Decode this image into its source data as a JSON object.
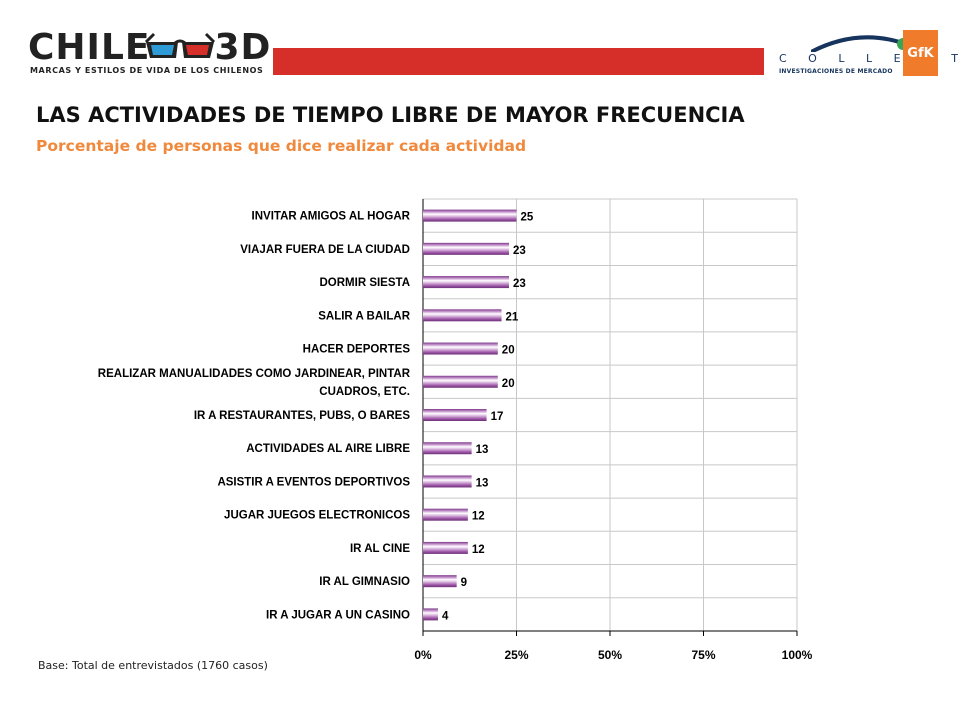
{
  "header": {
    "logo_text_left": "CHILE",
    "logo_text_right": "3D",
    "logo_tagline": "MARCAS Y ESTILOS DE VIDA DE LOS CHILENOS",
    "collect_logo": "C O L L E C T",
    "collect_subtitle": "INVESTIGACIONES DE MERCADO",
    "gfk_logo": "GfK"
  },
  "colors": {
    "band_red": "#d62f2a",
    "subtitle_orange": "#f0893c",
    "bar_purple": "#a05aa8",
    "bar_stripe": "#ffffff",
    "gfk_orange": "#f07b2b",
    "collect_blue": "#16345e",
    "collect_green": "#3aa655"
  },
  "chart_data": {
    "type": "bar",
    "orientation": "horizontal",
    "title": "LAS ACTIVIDADES DE TIEMPO LIBRE DE MAYOR FRECUENCIA",
    "subtitle": "Porcentaje de personas que dice realizar cada actividad",
    "categories": [
      [
        "INVITAR AMIGOS AL HOGAR"
      ],
      [
        "VIAJAR FUERA DE LA CIUDAD"
      ],
      [
        "DORMIR SIESTA"
      ],
      [
        "SALIR A BAILAR"
      ],
      [
        "HACER DEPORTES"
      ],
      [
        "REALIZAR MANUALIDADES COMO JARDINEAR, PINTAR",
        "CUADROS, ETC."
      ],
      [
        "IR A RESTAURANTES, PUBS, O BARES"
      ],
      [
        "ACTIVIDADES AL AIRE LIBRE"
      ],
      [
        "ASISTIR A EVENTOS DEPORTIVOS"
      ],
      [
        "JUGAR JUEGOS ELECTRONICOS"
      ],
      [
        "IR AL CINE"
      ],
      [
        "IR AL GIMNASIO"
      ],
      [
        "IR A JUGAR A UN CASINO"
      ]
    ],
    "values": [
      25,
      23,
      23,
      21,
      20,
      20,
      17,
      13,
      13,
      12,
      12,
      9,
      4
    ],
    "value_labels": [
      "25",
      "23",
      "23",
      "21",
      "20",
      "20",
      "17",
      "13",
      "13",
      "12",
      "12",
      "9",
      "4"
    ],
    "xlim": [
      0,
      100
    ],
    "x_ticks": [
      0,
      25,
      50,
      75,
      100
    ],
    "x_tick_labels": [
      "0%",
      "25%",
      "50%",
      "75%",
      "100%"
    ],
    "grid": true
  },
  "footnote": "Base: Total de entrevistados (1760 casos)"
}
